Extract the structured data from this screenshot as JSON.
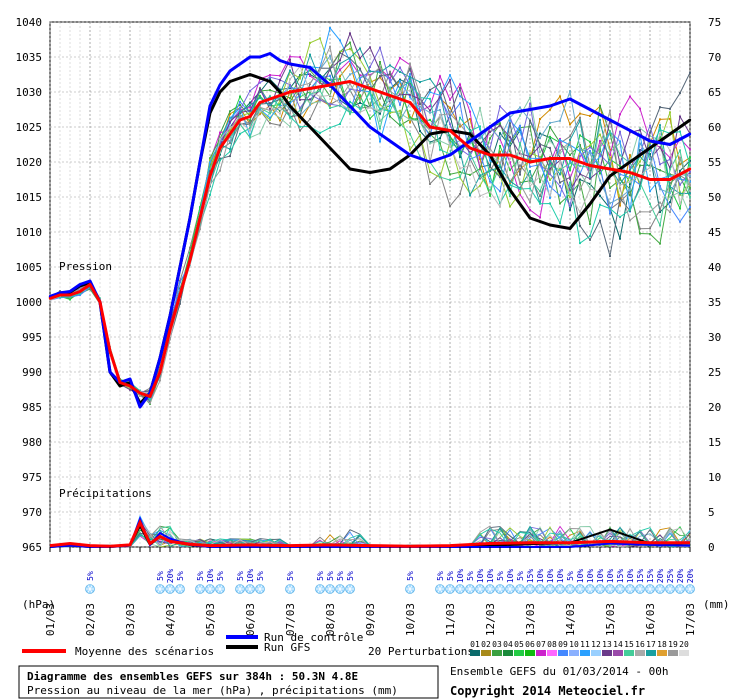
{
  "chart_data": {
    "type": "line",
    "title": "Diagramme des ensembles GEFS sur 384h : 50.3N 4.8E",
    "subtitle": "Pression au niveau de la mer (hPa) , précipitations (mm)",
    "ensemble_label": "Ensemble GEFS du 01/03/2014 - 00h",
    "copyright": "Copyright 2014 Meteociel.fr",
    "left_axis_label": "(hPa)",
    "right_axis_label": "(mm)",
    "pressure_section_label": "Pression",
    "precip_section_label": "Précipitations",
    "pressure_ticks": [
      1040,
      1035,
      1030,
      1025,
      1020,
      1015,
      1010,
      1005,
      1000,
      995,
      990,
      985,
      980,
      975,
      970,
      965
    ],
    "precip_ticks": [
      75,
      70,
      65,
      60,
      55,
      50,
      45,
      40,
      35,
      30,
      25,
      20,
      15,
      10,
      5,
      0
    ],
    "x_ticks": [
      "01/03",
      "02/03",
      "03/03",
      "04/03",
      "05/03",
      "06/03",
      "07/03",
      "08/03",
      "09/03",
      "10/03",
      "11/03",
      "12/03",
      "13/03",
      "14/03",
      "15/03",
      "16/03",
      "17/03"
    ],
    "legend": {
      "mean": "Moyenne des scénarios",
      "control": "Run de contrôle",
      "gfs": "Run GFS",
      "perturbations": "20 Perturbations",
      "member_numbers": [
        "01",
        "02",
        "03",
        "04",
        "05",
        "06",
        "07",
        "08",
        "09",
        "10",
        "11",
        "12",
        "13",
        "14",
        "15",
        "16",
        "17",
        "18",
        "19",
        "20"
      ]
    },
    "snow_chances": [
      {
        "day": 1.0,
        "pct": "5%"
      },
      {
        "day": 2.75,
        "pct": "5%"
      },
      {
        "day": 3.0,
        "pct": "20%"
      },
      {
        "day": 3.25,
        "pct": "5%"
      },
      {
        "day": 3.75,
        "pct": "5%"
      },
      {
        "day": 4.0,
        "pct": "10%"
      },
      {
        "day": 4.25,
        "pct": "5%"
      },
      {
        "day": 4.75,
        "pct": "5%"
      },
      {
        "day": 5.0,
        "pct": "10%"
      },
      {
        "day": 5.25,
        "pct": "5%"
      },
      {
        "day": 6.0,
        "pct": "5%"
      },
      {
        "day": 6.75,
        "pct": "5%"
      },
      {
        "day": 7.0,
        "pct": "5%"
      },
      {
        "day": 7.25,
        "pct": "5%"
      },
      {
        "day": 7.5,
        "pct": "5%"
      },
      {
        "day": 9.0,
        "pct": "5%"
      },
      {
        "day": 9.75,
        "pct": "5%"
      },
      {
        "day": 10.0,
        "pct": "5%"
      },
      {
        "day": 10.25,
        "pct": "10%"
      },
      {
        "day": 10.5,
        "pct": "5%"
      },
      {
        "day": 10.75,
        "pct": "10%"
      },
      {
        "day": 11.0,
        "pct": "10%"
      },
      {
        "day": 11.25,
        "pct": "5%"
      },
      {
        "day": 11.5,
        "pct": "10%"
      },
      {
        "day": 11.75,
        "pct": "5%"
      },
      {
        "day": 12.0,
        "pct": "15%"
      },
      {
        "day": 12.25,
        "pct": "10%"
      },
      {
        "day": 12.5,
        "pct": "10%"
      },
      {
        "day": 12.75,
        "pct": "10%"
      },
      {
        "day": 13.0,
        "pct": "5%"
      },
      {
        "day": 13.25,
        "pct": "10%"
      },
      {
        "day": 13.5,
        "pct": "10%"
      },
      {
        "day": 13.75,
        "pct": "10%"
      },
      {
        "day": 14.0,
        "pct": "10%"
      },
      {
        "day": 14.25,
        "pct": "15%"
      },
      {
        "day": 14.5,
        "pct": "10%"
      },
      {
        "day": 14.75,
        "pct": "15%"
      },
      {
        "day": 15.0,
        "pct": "15%"
      },
      {
        "day": 15.25,
        "pct": "20%"
      },
      {
        "day": 15.5,
        "pct": "25%"
      },
      {
        "day": 15.75,
        "pct": "20%"
      },
      {
        "day": 16.0,
        "pct": "20%"
      }
    ],
    "x_range_days": [
      0,
      16
    ],
    "pressure_range": [
      965,
      1040
    ],
    "precip_range": [
      0,
      75
    ],
    "grid": true,
    "series": [
      {
        "name": "Moyenne des scénarios",
        "color": "#ff0000",
        "width": 3,
        "x": [
          0,
          0.25,
          0.5,
          0.75,
          1.0,
          1.25,
          1.5,
          1.75,
          2.0,
          2.25,
          2.5,
          2.75,
          3.0,
          3.25,
          3.5,
          3.75,
          4.0,
          4.25,
          4.5,
          4.75,
          5.0,
          5.25,
          5.5,
          5.75,
          6.0,
          6.5,
          7.0,
          7.5,
          8.0,
          8.5,
          9.0,
          9.5,
          10.0,
          10.5,
          11.0,
          11.5,
          12.0,
          12.5,
          13.0,
          13.5,
          14.0,
          14.5,
          15.0,
          15.5,
          16.0
        ],
        "y": [
          1000.5,
          1001,
          1001,
          1001.5,
          1002.5,
          1000,
          993,
          988.5,
          988,
          987,
          986.5,
          990,
          996,
          1001,
          1006,
          1012,
          1018,
          1022,
          1024,
          1026,
          1026.5,
          1028.5,
          1029,
          1029.5,
          1030,
          1030.5,
          1031,
          1031.5,
          1030.5,
          1029.5,
          1028.5,
          1025,
          1024.5,
          1022,
          1021,
          1021,
          1020,
          1020.5,
          1020.5,
          1019.5,
          1019,
          1018.5,
          1017.5,
          1017.5,
          1019
        ]
      },
      {
        "name": "Run de contrôle",
        "color": "#0000ff",
        "width": 3,
        "x": [
          0,
          0.25,
          0.5,
          0.75,
          1.0,
          1.25,
          1.5,
          1.75,
          2.0,
          2.25,
          2.5,
          2.75,
          3.0,
          3.25,
          3.5,
          3.75,
          4.0,
          4.25,
          4.5,
          4.75,
          5.0,
          5.25,
          5.5,
          5.75,
          6.0,
          6.5,
          7.0,
          7.5,
          8.0,
          8.5,
          9.0,
          9.5,
          10.0,
          10.5,
          11.0,
          11.5,
          12.0,
          12.5,
          13.0,
          13.5,
          14.0,
          14.5,
          15.0,
          15.5,
          16.0
        ],
        "y": [
          1000.8,
          1001.3,
          1001.5,
          1002.5,
          1003,
          1000,
          990,
          988.5,
          989,
          985,
          987,
          992,
          998,
          1005,
          1012,
          1020,
          1028,
          1031,
          1033,
          1034,
          1035,
          1035,
          1035.5,
          1034.5,
          1034,
          1033.5,
          1031,
          1028,
          1025,
          1023,
          1021,
          1020,
          1021,
          1023,
          1025,
          1027,
          1027.5,
          1028,
          1029,
          1027.5,
          1026,
          1024.5,
          1023,
          1022.5,
          1024
        ]
      },
      {
        "name": "Run GFS",
        "color": "#000000",
        "width": 3,
        "x": [
          0,
          0.25,
          0.5,
          0.75,
          1.0,
          1.25,
          1.5,
          1.75,
          2.0,
          2.25,
          2.5,
          2.75,
          3.0,
          3.25,
          3.5,
          3.75,
          4.0,
          4.25,
          4.5,
          4.75,
          5.0,
          5.25,
          5.5,
          5.75,
          6.0,
          6.5,
          7.0,
          7.5,
          8.0,
          8.5,
          9.0,
          9.5,
          10.0,
          10.5,
          11.0,
          11.5,
          12.0,
          12.5,
          13.0,
          13.5,
          14.0,
          14.5,
          15.0,
          15.5,
          16.0
        ],
        "y": [
          1000.7,
          1001.2,
          1001.4,
          1002.3,
          1002.8,
          1000,
          990,
          988,
          988.5,
          985.5,
          987,
          992,
          998,
          1005,
          1012,
          1020,
          1027,
          1030,
          1031.5,
          1032,
          1032.5,
          1032,
          1031.5,
          1030,
          1028,
          1025,
          1022,
          1019,
          1018.5,
          1019,
          1021,
          1024,
          1024.5,
          1024,
          1021,
          1016,
          1012,
          1011,
          1010.5,
          1014,
          1018,
          1020,
          1022,
          1024,
          1026
        ]
      }
    ],
    "precip_series": [
      {
        "name": "Moyenne des scénarios",
        "color": "#ff0000",
        "x": [
          0,
          0.5,
          1,
          1.5,
          2,
          2.25,
          2.5,
          2.75,
          3,
          3.5,
          4,
          5,
          6,
          7,
          8,
          9,
          10,
          11,
          12,
          13,
          14,
          15,
          16
        ],
        "y": [
          0.2,
          0.5,
          0.2,
          0.1,
          0.3,
          3.5,
          0.5,
          1.5,
          0.8,
          0.4,
          0.2,
          0.3,
          0.2,
          0.3,
          0.2,
          0.1,
          0.2,
          0.5,
          0.6,
          0.6,
          0.8,
          0.6,
          0.6
        ]
      },
      {
        "name": "Run de contrôle",
        "color": "#0000ff",
        "x": [
          0,
          0.5,
          1,
          1.5,
          2,
          2.25,
          2.5,
          2.75,
          3,
          3.5,
          4,
          5,
          6,
          7,
          8,
          9,
          10,
          11,
          12,
          13,
          14,
          15,
          16
        ],
        "y": [
          0,
          0.2,
          0,
          0,
          0.2,
          4,
          0.3,
          2,
          1.2,
          0.3,
          0,
          0,
          0,
          0,
          0,
          0,
          0,
          0,
          0,
          0,
          0.5,
          0.3,
          0.2
        ]
      },
      {
        "name": "Run GFS",
        "color": "#000000",
        "x": [
          0,
          0.5,
          1,
          1.5,
          2,
          2.25,
          2.5,
          2.75,
          3,
          3.5,
          4,
          5,
          6,
          7,
          8,
          9,
          10,
          11,
          12,
          13,
          14,
          15,
          16
        ],
        "y": [
          0,
          0.2,
          0,
          0,
          0.2,
          3,
          0.3,
          1.5,
          0.8,
          0.3,
          0,
          0,
          0,
          0,
          0,
          0,
          0,
          0.2,
          0.4,
          0.6,
          2.5,
          0.5,
          0.2
        ]
      }
    ]
  }
}
